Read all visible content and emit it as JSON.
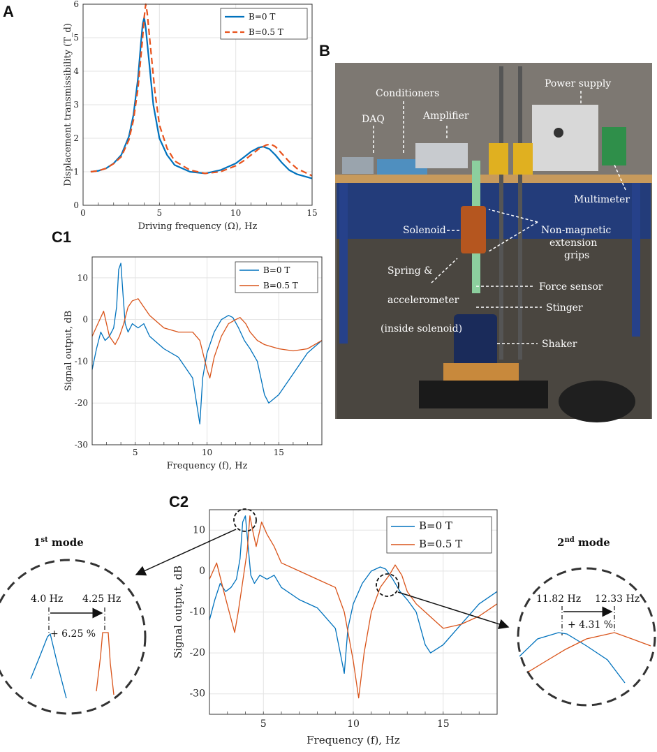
{
  "colors": {
    "blue": "#0072BD",
    "orange": "#D95319",
    "orange_dash": "#E8531D",
    "photo_bg": "#5a5550"
  },
  "panels": {
    "A": "A",
    "B": "B",
    "C1": "C1",
    "C2": "C2"
  },
  "chart_data": [
    {
      "id": "A",
      "type": "line",
      "title": "",
      "xlabel": "Driving frequency (Ω), Hz",
      "ylabel": "Displacement transmissibility (T_d)",
      "xlim": [
        0,
        15
      ],
      "ylim": [
        0,
        6
      ],
      "xticks": [
        0,
        5,
        10,
        15
      ],
      "yticks": [
        0,
        1,
        2,
        3,
        4,
        5,
        6
      ],
      "grid": true,
      "legend_position": "top-right",
      "series": [
        {
          "name": "B=0 T",
          "style": "solid",
          "x": [
            0.5,
            1,
            1.5,
            2,
            2.5,
            3,
            3.3,
            3.6,
            3.8,
            3.9,
            4.0,
            4.1,
            4.3,
            4.6,
            5,
            5.5,
            6,
            7,
            8,
            9,
            10,
            10.5,
            11,
            11.5,
            11.8,
            12.2,
            12.6,
            13,
            13.5,
            14,
            15
          ],
          "y": [
            1.0,
            1.03,
            1.1,
            1.25,
            1.5,
            2.05,
            2.7,
            3.8,
            4.9,
            5.4,
            5.6,
            5.3,
            4.4,
            3.0,
            2.0,
            1.5,
            1.2,
            1.0,
            0.95,
            1.05,
            1.25,
            1.42,
            1.6,
            1.72,
            1.75,
            1.68,
            1.5,
            1.28,
            1.05,
            0.93,
            0.8
          ]
        },
        {
          "name": "B=0.5 T",
          "style": "dashed",
          "x": [
            0.5,
            1,
            1.5,
            2,
            2.5,
            3,
            3.3,
            3.6,
            3.9,
            4.0,
            4.1,
            4.2,
            4.4,
            4.7,
            5,
            5.5,
            6,
            7,
            8,
            9,
            10,
            10.5,
            11,
            11.5,
            12,
            12.3,
            12.6,
            13,
            13.5,
            14,
            15
          ],
          "y": [
            1.0,
            1.03,
            1.1,
            1.24,
            1.45,
            1.95,
            2.55,
            3.5,
            5.0,
            5.6,
            6.0,
            5.75,
            4.8,
            3.4,
            2.4,
            1.7,
            1.32,
            1.05,
            0.95,
            1.0,
            1.18,
            1.32,
            1.5,
            1.68,
            1.8,
            1.82,
            1.75,
            1.55,
            1.3,
            1.1,
            0.88
          ]
        }
      ]
    },
    {
      "id": "C1",
      "type": "line",
      "title": "",
      "xlabel": "Frequency (f), Hz",
      "ylabel": "Signal output, dB",
      "xlim": [
        2,
        18
      ],
      "ylim": [
        -30,
        15
      ],
      "xticks": [
        5,
        10,
        15
      ],
      "yticks": [
        -30,
        -20,
        -10,
        0,
        10
      ],
      "grid": true,
      "legend_position": "top-right",
      "series": [
        {
          "name": "B=0 T",
          "x": [
            2,
            2.3,
            2.6,
            2.9,
            3.2,
            3.5,
            3.7,
            3.85,
            4.0,
            4.15,
            4.3,
            4.5,
            4.8,
            5.2,
            5.6,
            6,
            7,
            8,
            9,
            9.5,
            9.7,
            10,
            10.5,
            11,
            11.5,
            11.8,
            12.2,
            12.6,
            13,
            13.5,
            14,
            14.3,
            15,
            16,
            17,
            18
          ],
          "y": [
            -12,
            -7,
            -3,
            -5,
            -4,
            -2,
            3,
            12,
            13.5,
            6,
            -1,
            -3,
            -1,
            -2,
            -1,
            -4,
            -7,
            -9,
            -14,
            -25,
            -14,
            -8,
            -3,
            0,
            1,
            0.5,
            -2,
            -5,
            -7,
            -10,
            -18,
            -20,
            -18,
            -13,
            -8,
            -5
          ]
        },
        {
          "name": "B=0.5 T",
          "x": [
            2,
            2.4,
            2.8,
            3.2,
            3.6,
            3.9,
            4.2,
            4.5,
            4.8,
            5.2,
            5.6,
            6,
            7,
            8,
            9,
            9.5,
            10,
            10.2,
            10.5,
            11,
            11.5,
            12,
            12.3,
            12.7,
            13,
            13.5,
            14,
            15,
            16,
            17,
            18
          ],
          "y": [
            -4,
            -1,
            2,
            -4,
            -6,
            -4,
            -1,
            3,
            4.5,
            5,
            3,
            1,
            -2,
            -3,
            -3,
            -5,
            -12,
            -14,
            -9,
            -4,
            -1,
            0,
            0.5,
            -1,
            -3,
            -5,
            -6,
            -7,
            -7.5,
            -7,
            -5
          ]
        }
      ]
    },
    {
      "id": "C2",
      "type": "line",
      "title": "",
      "xlabel": "Frequency (f), Hz",
      "ylabel": "Signal output, dB",
      "xlim": [
        2,
        18
      ],
      "ylim": [
        -35,
        15
      ],
      "xticks": [
        5,
        10,
        15
      ],
      "yticks": [
        -30,
        -20,
        -10,
        0,
        10
      ],
      "grid": true,
      "legend_position": "top-right",
      "series": [
        {
          "name": "B=0 T",
          "x": [
            2,
            2.3,
            2.6,
            2.9,
            3.2,
            3.5,
            3.7,
            3.85,
            4.0,
            4.15,
            4.3,
            4.5,
            4.8,
            5.2,
            5.6,
            6,
            7,
            8,
            9,
            9.5,
            9.7,
            10,
            10.5,
            11,
            11.5,
            11.8,
            12.2,
            12.6,
            13,
            13.5,
            14,
            14.3,
            15,
            16,
            17,
            18
          ],
          "y": [
            -12,
            -7,
            -3,
            -5,
            -4,
            -2,
            3,
            12,
            13.5,
            6,
            -1,
            -3,
            -1,
            -2,
            -1,
            -4,
            -7,
            -9,
            -14,
            -25,
            -14,
            -8,
            -3,
            0,
            1,
            0.5,
            -2,
            -5,
            -7,
            -10,
            -18,
            -20,
            -18,
            -13,
            -8,
            -5
          ]
        },
        {
          "name": "B=0.5 T",
          "x": [
            2,
            2.4,
            2.8,
            3.1,
            3.4,
            3.6,
            3.8,
            4.0,
            4.1,
            4.25,
            4.4,
            4.6,
            4.9,
            5.2,
            5.6,
            6,
            7,
            8,
            9,
            9.5,
            10,
            10.3,
            10.6,
            11,
            11.5,
            12,
            12.33,
            12.7,
            13,
            13.5,
            14,
            15,
            16,
            17,
            18
          ],
          "y": [
            -2,
            2,
            -5,
            -10,
            -15,
            -10,
            -4,
            2,
            5,
            13.5,
            10,
            6,
            12,
            9,
            6,
            2,
            0,
            -2,
            -4,
            -10,
            -22,
            -31,
            -20,
            -10,
            -4,
            -1,
            1.5,
            -1,
            -5,
            -8,
            -10,
            -14,
            -13,
            -11,
            -8
          ]
        }
      ]
    }
  ],
  "photo": {
    "labels": {
      "daq": "DAQ",
      "conditioners": "Conditioners",
      "amplifier": "Amplifier",
      "power_supply": "Power supply",
      "multimeter": "Multimeter",
      "solenoid": "Solenoid",
      "non_magnetic_1": "Non-magnetic",
      "non_magnetic_2": "extension",
      "non_magnetic_3": "grips",
      "spring_1": "Spring &",
      "spring_2": "accelerometer",
      "spring_3": "(inside solenoid)",
      "force_sensor": "Force sensor",
      "stinger": "Stinger",
      "shaker": "Shaker"
    }
  },
  "zoom": {
    "first": {
      "title_num": "1",
      "title_sup": "st",
      "title_rest": " mode",
      "f_left": "4.0 Hz",
      "f_right": "4.25 Hz",
      "pct": "+ 6.25 %"
    },
    "second": {
      "title_num": "2",
      "title_sup": "nd",
      "title_rest": " mode",
      "f_left": "11.82 Hz",
      "f_right": "12.33 Hz",
      "pct": "+ 4.31 %"
    }
  }
}
